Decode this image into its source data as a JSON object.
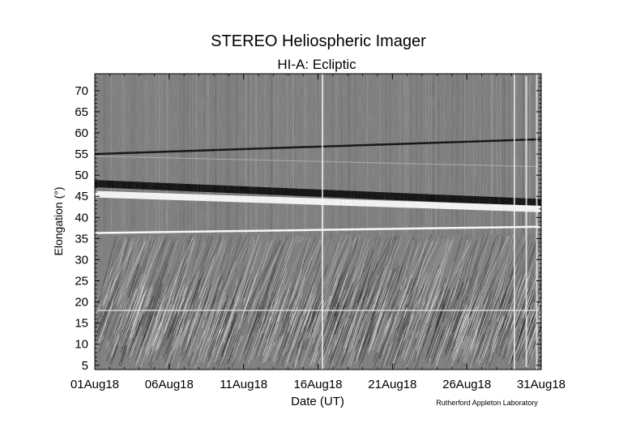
{
  "chart_data": {
    "type": "heatmap",
    "title": "STEREO Heliospheric Imager",
    "subtitle": "HI-A: Ecliptic",
    "xlabel": "Date (UT)",
    "ylabel": "Elongation (°)",
    "credit": "Rutherford Appleton Laboratory",
    "x_ticks": [
      "01Aug18",
      "06Aug18",
      "11Aug18",
      "16Aug18",
      "21Aug18",
      "26Aug18",
      "31Aug18"
    ],
    "x_tick_days": [
      0,
      5,
      10,
      15,
      20,
      25,
      30
    ],
    "x_range_days": [
      0,
      30
    ],
    "y_ticks": [
      5,
      10,
      15,
      20,
      25,
      30,
      35,
      40,
      45,
      50,
      55,
      60,
      65,
      70
    ],
    "ylim": [
      4,
      74
    ],
    "colormap": "grayscale",
    "background_color": "#7a7a7a",
    "instrument_boundary_elongation": 18,
    "features": [
      {
        "kind": "dark-line",
        "elongation_start": 55.0,
        "elongation_end": 58.5
      },
      {
        "kind": "dark-band",
        "elongation_start": 48.0,
        "elongation_end": 43.5
      },
      {
        "kind": "bright-band",
        "elongation_start": 45.5,
        "elongation_end": 42.0
      },
      {
        "kind": "bright-line",
        "elongation_start": 36.3,
        "elongation_end": 37.8
      },
      {
        "kind": "faint-line",
        "elongation_start": 54.5,
        "elongation_end": 52.0
      }
    ],
    "data_gaps_days": [
      15.3,
      28.2,
      29.0,
      29.7
    ]
  }
}
